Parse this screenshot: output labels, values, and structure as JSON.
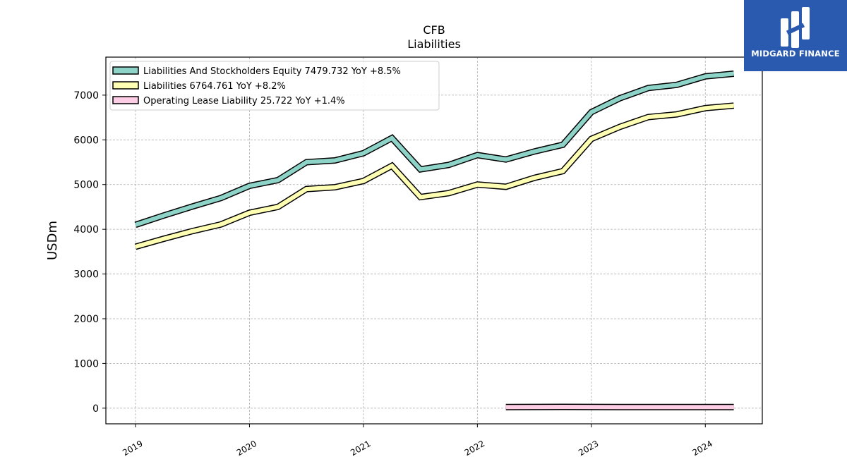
{
  "chart_data": {
    "type": "line",
    "title": "CFB",
    "subtitle": "Liabilities",
    "ylabel": "USDm",
    "xlabel": "",
    "xlim": [
      2018.74,
      2024.5
    ],
    "ylim": [
      -350,
      7850
    ],
    "yticks": [
      0,
      1000,
      2000,
      3000,
      4000,
      5000,
      6000,
      7000
    ],
    "xticks": [
      "2019",
      "2020",
      "2021",
      "2022",
      "2023",
      "2024"
    ],
    "grid": true,
    "legend_position": "top-left",
    "series": [
      {
        "name": "Liabilities And Stockholders Equity",
        "legend": "Liabilities And Stockholders Equity  7479.732 YoY +8.5%",
        "color": "#8dd3c7",
        "x": [
          2019.0,
          2019.25,
          2019.5,
          2019.75,
          2020.0,
          2020.25,
          2020.5,
          2020.75,
          2021.0,
          2021.25,
          2021.5,
          2021.75,
          2022.0,
          2022.25,
          2022.5,
          2022.75,
          2023.0,
          2023.25,
          2023.5,
          2023.75,
          2024.0,
          2024.25
        ],
        "y": [
          4100,
          4310,
          4510,
          4700,
          4970,
          5100,
          5500,
          5540,
          5700,
          6040,
          5340,
          5440,
          5660,
          5560,
          5740,
          5890,
          6620,
          6930,
          7160,
          7230,
          7420,
          7480
        ]
      },
      {
        "name": "Liabilities",
        "legend": "Liabilities  6764.761 YoY +8.2%",
        "color": "#ffffb3",
        "x": [
          2019.0,
          2019.25,
          2019.5,
          2019.75,
          2020.0,
          2020.25,
          2020.5,
          2020.75,
          2021.0,
          2021.25,
          2021.5,
          2021.75,
          2022.0,
          2022.25,
          2022.5,
          2022.75,
          2023.0,
          2023.25,
          2023.5,
          2023.75,
          2024.0,
          2024.25
        ],
        "y": [
          3610,
          3790,
          3960,
          4110,
          4370,
          4500,
          4900,
          4940,
          5080,
          5420,
          4720,
          4810,
          5000,
          4950,
          5150,
          5300,
          6020,
          6290,
          6510,
          6570,
          6710,
          6765
        ]
      },
      {
        "name": "Operating Lease Liability",
        "legend": "Operating Lease Liability  25.722 YoY +1.4%",
        "color": "#fccde5",
        "x": [
          2022.25,
          2022.5,
          2022.75,
          2023.0,
          2023.25,
          2023.5,
          2023.75,
          2024.0,
          2024.25
        ],
        "y": [
          26,
          27,
          28,
          27,
          26,
          26,
          25,
          26,
          26
        ]
      }
    ]
  },
  "logo": {
    "text": "MIDGARD FINANCE",
    "background": "#2a5ab0"
  }
}
